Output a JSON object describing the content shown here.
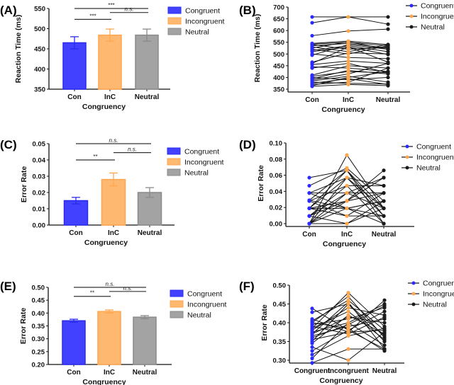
{
  "chart_data": [
    {
      "id": "A",
      "panel_label": "(A)",
      "type": "bar",
      "categories": [
        "Con",
        "InC",
        "Neutral"
      ],
      "values": [
        465,
        484,
        484
      ],
      "errors": [
        15,
        15,
        15
      ],
      "xlabel": "Congruency",
      "ylabel": "Reaction Time (ms)",
      "ylim": [
        350,
        550
      ],
      "yticks": [
        "350",
        "400",
        "450",
        "500",
        "550"
      ],
      "legend": [
        "Congruent",
        "Incongruent",
        "Neutral"
      ],
      "legend_position": "right",
      "significance": [
        {
          "from": 0,
          "to": 2,
          "y": 550,
          "text": "***"
        },
        {
          "from": 1,
          "to": 2,
          "y": 540,
          "text": "n.s."
        },
        {
          "from": 0,
          "to": 1,
          "y": 523,
          "text": "***"
        }
      ]
    },
    {
      "id": "B",
      "panel_label": "(B)",
      "type": "line",
      "categories": [
        "Con",
        "InC",
        "Neutral"
      ],
      "xlabel": "Congruency",
      "ylabel": "Reaction Time (ms)",
      "ylim": [
        350,
        700
      ],
      "yticks": [
        "350",
        "400",
        "450",
        "500",
        "550",
        "600",
        "650",
        "700"
      ],
      "legend": [
        "Congruent",
        "Incongruent",
        "Neutral"
      ],
      "legend_position": "right",
      "subjects": [
        [
          658,
          658,
          658
        ],
        [
          633,
          658,
          627
        ],
        [
          578,
          598,
          606
        ],
        [
          545,
          555,
          540
        ],
        [
          542,
          550,
          535
        ],
        [
          540,
          520,
          530
        ],
        [
          535,
          545,
          525
        ],
        [
          530,
          510,
          540
        ],
        [
          525,
          552,
          520
        ],
        [
          520,
          500,
          535
        ],
        [
          515,
          535,
          510
        ],
        [
          510,
          530,
          498
        ],
        [
          500,
          485,
          480
        ],
        [
          495,
          540,
          520
        ],
        [
          465,
          505,
          500
        ],
        [
          460,
          530,
          465
        ],
        [
          455,
          470,
          460
        ],
        [
          445,
          440,
          425
        ],
        [
          440,
          460,
          420
        ],
        [
          410,
          450,
          440
        ],
        [
          405,
          425,
          420
        ],
        [
          400,
          390,
          400
        ],
        [
          395,
          430,
          415
        ],
        [
          385,
          405,
          380
        ],
        [
          380,
          375,
          372
        ],
        [
          375,
          395,
          370
        ],
        [
          370,
          380,
          440
        ],
        [
          365,
          400,
          425
        ],
        [
          362,
          370,
          365
        ],
        [
          390,
          415,
          460
        ]
      ]
    },
    {
      "id": "C",
      "panel_label": "(C)",
      "type": "bar",
      "categories": [
        "Con",
        "InC",
        "Neutral"
      ],
      "values": [
        0.015,
        0.028,
        0.02
      ],
      "errors": [
        0.002,
        0.004,
        0.003
      ],
      "xlabel": "Congruency",
      "ylabel": "Error Rate",
      "ylim": [
        0,
        0.05
      ],
      "yticks": [
        "0.00",
        "0.01",
        "0.02",
        "0.03",
        "0.04",
        "0.05"
      ],
      "legend": [
        "Congruent",
        "Incongruent",
        "Neutral"
      ],
      "legend_position": "right",
      "significance": [
        {
          "from": 0,
          "to": 2,
          "y": 0.05,
          "text": "n.s."
        },
        {
          "from": 1,
          "to": 2,
          "y": 0.0445,
          "text": "n.s."
        },
        {
          "from": 0,
          "to": 1,
          "y": 0.04,
          "text": "**"
        }
      ]
    },
    {
      "id": "D",
      "panel_label": "(D)",
      "type": "line",
      "categories": [
        "Con",
        "InC",
        "Neutral"
      ],
      "xlabel": "Congruency",
      "ylabel": "Error Rate",
      "ylim": [
        0,
        0.1
      ],
      "yticks": [
        "0.00",
        "0.02",
        "0.04",
        "0.06",
        "0.08",
        "0.10"
      ],
      "legend": [
        "Congruent",
        "Incongruent",
        "Neutral"
      ],
      "legend_position": "right",
      "subjects": [
        [
          0.057,
          0.066,
          0.019
        ],
        [
          0.047,
          0.069,
          0.028
        ],
        [
          0.038,
          0.038,
          0.038
        ],
        [
          0.038,
          0.057,
          0.019
        ],
        [
          0.029,
          0.066,
          0.0095
        ],
        [
          0.028,
          0.047,
          0.047
        ],
        [
          0.019,
          0.028,
          0.057
        ],
        [
          0.019,
          0.019,
          0.028
        ],
        [
          0.019,
          0.0095,
          0.038
        ],
        [
          0.0095,
          0.038,
          0.019
        ],
        [
          0.0095,
          0.0285,
          0.066
        ],
        [
          0,
          0.085,
          0.019
        ],
        [
          0,
          0.057,
          0.0095
        ],
        [
          0,
          0.019,
          0.028
        ],
        [
          0,
          0,
          0.019
        ],
        [
          0.0095,
          0.047,
          0
        ],
        [
          0.038,
          0.019,
          0
        ],
        [
          0.028,
          0.0095,
          0.0095
        ],
        [
          0,
          0.028,
          0.038
        ],
        [
          0.019,
          0.057,
          0.047
        ],
        [
          0.0095,
          0,
          0.028
        ],
        [
          0.029,
          0.019,
          0.0095
        ],
        [
          0,
          0.038,
          0.057
        ],
        [
          0.019,
          0.066,
          0
        ]
      ]
    },
    {
      "id": "E",
      "panel_label": "(E)",
      "type": "bar",
      "categories": [
        "Con",
        "InC",
        "Neutral"
      ],
      "values": [
        0.37,
        0.406,
        0.384
      ],
      "errors": [
        0.006,
        0.006,
        0.006
      ],
      "xlabel": "Congruency",
      "ylabel": "Error Rate",
      "ylim": [
        0.2,
        0.5
      ],
      "yticks": [
        "0.20",
        "0.25",
        "0.30",
        "0.35",
        "0.40",
        "0.45",
        "0.50"
      ],
      "legend": [
        "Congruent",
        "Incongruent",
        "Neutral"
      ],
      "legend_position": "right",
      "significance": [
        {
          "from": 0,
          "to": 2,
          "y": 0.5,
          "text": "n.s."
        },
        {
          "from": 1,
          "to": 2,
          "y": 0.484,
          "text": "n.s."
        },
        {
          "from": 0,
          "to": 1,
          "y": 0.465,
          "text": "**"
        }
      ]
    },
    {
      "id": "F",
      "panel_label": "(F)",
      "type": "line",
      "categories": [
        "Congruent",
        "Incongruent",
        "Neutral"
      ],
      "xlabel": "Congruency",
      "ylabel": "Error Rate",
      "ylim": [
        0.3,
        0.5
      ],
      "yticks": [
        "0.30",
        "0.35",
        "0.40",
        "0.45",
        "0.50"
      ],
      "legend": [
        "Congruent",
        "Incongruent",
        "Neutral"
      ],
      "legend_position": "right",
      "subjects": [
        [
          0.438,
          0.38,
          0.33
        ],
        [
          0.428,
          0.45,
          0.35
        ],
        [
          0.405,
          0.46,
          0.38
        ],
        [
          0.4,
          0.47,
          0.36
        ],
        [
          0.395,
          0.41,
          0.44
        ],
        [
          0.385,
          0.48,
          0.39
        ],
        [
          0.38,
          0.44,
          0.42
        ],
        [
          0.375,
          0.4,
          0.45
        ],
        [
          0.37,
          0.455,
          0.33
        ],
        [
          0.365,
          0.39,
          0.41
        ],
        [
          0.355,
          0.375,
          0.46
        ],
        [
          0.345,
          0.42,
          0.37
        ],
        [
          0.335,
          0.3,
          0.375
        ],
        [
          0.325,
          0.38,
          0.43
        ],
        [
          0.315,
          0.365,
          0.385
        ],
        [
          0.305,
          0.4,
          0.34
        ],
        [
          0.293,
          0.33,
          0.33
        ],
        [
          0.4,
          0.385,
          0.325
        ],
        [
          0.37,
          0.415,
          0.4
        ],
        [
          0.385,
          0.43,
          0.355
        ],
        [
          0.39,
          0.37,
          0.415
        ],
        [
          0.36,
          0.395,
          0.445
        ],
        [
          0.35,
          0.45,
          0.365
        ],
        [
          0.41,
          0.375,
          0.38
        ]
      ]
    }
  ],
  "colors": {
    "bar_fill": [
      "#4141ff",
      "#ffb870",
      "#a3a3a3"
    ],
    "bar_stroke": [
      "#2a2aee",
      "#ffa650",
      "#8a8a8a"
    ],
    "dot": [
      "#2b2bff",
      "#ffa64d",
      "#1a1a1a"
    ]
  }
}
